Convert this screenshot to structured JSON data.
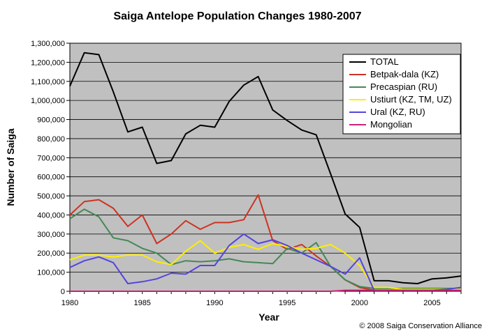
{
  "chart_data": {
    "type": "line",
    "title": "Saiga Antelope Population Changes 1980-2007",
    "xlabel": "Year",
    "ylabel": "Number of Saiga",
    "credit": "© 2008 Saiga Conservation Alliance",
    "xlim": [
      1980,
      2007
    ],
    "ylim": [
      0,
      1300000
    ],
    "x_ticks": [
      1980,
      1985,
      1990,
      1995,
      2000,
      2005
    ],
    "y_ticks": [
      0,
      100000,
      200000,
      300000,
      400000,
      500000,
      600000,
      700000,
      800000,
      900000,
      1000000,
      1100000,
      1200000,
      1300000
    ],
    "y_tick_labels": [
      "0",
      "100,000",
      "200,000",
      "300,000",
      "400,000",
      "500,000",
      "600,000",
      "700,000",
      "800,000",
      "900,000",
      "1,000,000",
      "1,100,000",
      "1,200,000",
      "1,300,000"
    ],
    "grid": true,
    "legend_position": "top-right",
    "background": "#c0c0c0",
    "x": [
      1980,
      1981,
      1982,
      1983,
      1984,
      1985,
      1986,
      1987,
      1988,
      1989,
      1990,
      1991,
      1992,
      1993,
      1994,
      1995,
      1996,
      1997,
      1998,
      1999,
      2000,
      2001,
      2002,
      2003,
      2004,
      2005,
      2006,
      2007
    ],
    "series": [
      {
        "name": "TOTAL",
        "color": "#000000",
        "values": [
          1075000,
          1250000,
          1240000,
          1045000,
          835000,
          860000,
          670000,
          685000,
          825000,
          870000,
          860000,
          995000,
          1080000,
          1125000,
          950000,
          895000,
          845000,
          820000,
          615000,
          405000,
          335000,
          55000,
          55000,
          45000,
          40000,
          65000,
          70000,
          80000
        ]
      },
      {
        "name": "Betpak-dala (KZ)",
        "color": "#cc3322",
        "values": [
          400000,
          470000,
          480000,
          435000,
          340000,
          400000,
          250000,
          300000,
          370000,
          325000,
          360000,
          360000,
          375000,
          505000,
          265000,
          220000,
          245000,
          185000,
          130000,
          60000,
          20000,
          5000,
          5000,
          5000,
          5000,
          5000,
          5000,
          5000
        ]
      },
      {
        "name": "Precaspian (RU)",
        "color": "#448855",
        "values": [
          380000,
          430000,
          390000,
          280000,
          265000,
          225000,
          200000,
          140000,
          160000,
          155000,
          160000,
          170000,
          155000,
          150000,
          145000,
          225000,
          200000,
          255000,
          130000,
          60000,
          25000,
          15000,
          15000,
          15000,
          15000,
          15000,
          15000,
          15000
        ]
      },
      {
        "name": "Ustiurt (KZ, TM, UZ)",
        "color": "#ffee00",
        "values": [
          165000,
          190000,
          190000,
          180000,
          190000,
          190000,
          155000,
          140000,
          210000,
          265000,
          200000,
          230000,
          245000,
          220000,
          250000,
          235000,
          220000,
          225000,
          245000,
          200000,
          135000,
          20000,
          20000,
          10000,
          10000,
          10000,
          10000,
          10000
        ]
      },
      {
        "name": "Ural (KZ, RU)",
        "color": "#5544dd",
        "values": [
          125000,
          160000,
          180000,
          150000,
          40000,
          50000,
          65000,
          95000,
          90000,
          135000,
          135000,
          240000,
          300000,
          250000,
          270000,
          240000,
          200000,
          165000,
          130000,
          90000,
          175000,
          5000,
          5000,
          5000,
          5000,
          5000,
          10000,
          20000
        ]
      },
      {
        "name": "Mongolian",
        "color": "#cc2277",
        "values": [
          0,
          0,
          0,
          0,
          0,
          0,
          0,
          0,
          0,
          0,
          0,
          0,
          0,
          0,
          0,
          0,
          0,
          0,
          0,
          5000,
          5000,
          5000,
          5000,
          5000,
          5000,
          5000,
          5000,
          5000
        ]
      }
    ]
  }
}
